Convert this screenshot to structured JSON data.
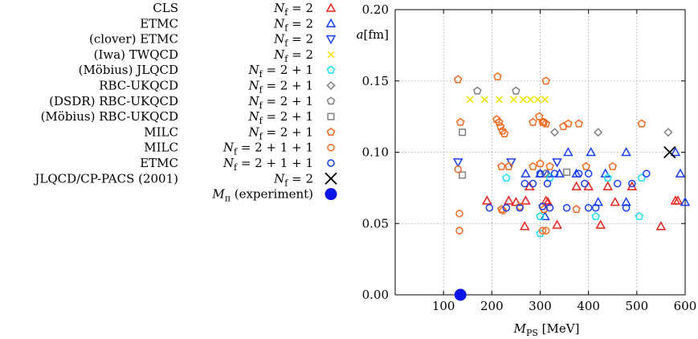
{
  "chart_data": {
    "type": "scatter",
    "xlabel": "M_PS [MeV]",
    "ylabel": "a[fm]",
    "xlim": [
      0,
      600
    ],
    "ylim": [
      0,
      0.2
    ],
    "xticks": [
      100,
      200,
      300,
      400,
      500,
      600
    ],
    "yticks": [
      0.0,
      0.05,
      0.1,
      0.15,
      0.2
    ],
    "xtick_labels": [
      "100",
      "200",
      "300",
      "400",
      "500",
      "600"
    ],
    "ytick_labels": [
      "0.00",
      "0.05",
      "0.10",
      "0.15",
      "0.20"
    ],
    "grid": true,
    "legend_position": "left of plot",
    "series": [
      {
        "name": "CLS",
        "nf": "N_f = 2",
        "marker": "triangle-up",
        "color": "#e8231f",
        "points": [
          [
            190,
            0.066
          ],
          [
            235,
            0.066
          ],
          [
            250,
            0.065
          ],
          [
            270,
            0.066
          ],
          [
            278,
            0.076
          ],
          [
            268,
            0.048
          ],
          [
            312,
            0.066
          ],
          [
            316,
            0.065
          ],
          [
            335,
            0.049
          ],
          [
            375,
            0.076
          ],
          [
            400,
            0.076
          ],
          [
            425,
            0.049
          ],
          [
            440,
            0.076
          ],
          [
            455,
            0.065
          ],
          [
            490,
            0.076
          ],
          [
            550,
            0.048
          ],
          [
            580,
            0.066
          ],
          [
            585,
            0.066
          ]
        ]
      },
      {
        "name": "ETMC",
        "nf": "N_f = 2",
        "marker": "triangle-up",
        "color": "#1a3ff0",
        "points": [
          [
            270,
            0.085
          ],
          [
            300,
            0.085
          ],
          [
            310,
            0.055
          ],
          [
            315,
            0.085
          ],
          [
            340,
            0.085
          ],
          [
            358,
            0.1
          ],
          [
            375,
            0.085
          ],
          [
            405,
            0.1
          ],
          [
            420,
            0.065
          ],
          [
            435,
            0.085
          ],
          [
            478,
            0.1
          ],
          [
            478,
            0.065
          ],
          [
            580,
            0.1
          ],
          [
            590,
            0.085
          ],
          [
            600,
            0.065
          ]
        ]
      },
      {
        "name": "(clover) ETMC",
        "nf": "N_f = 2",
        "marker": "triangle-down",
        "color": "#1a3ff0",
        "points": [
          [
            130,
            0.093
          ],
          [
            240,
            0.093
          ],
          [
            335,
            0.093
          ]
        ]
      },
      {
        "name": "(Iwa) TWQCD",
        "nf": "N_f = 2",
        "marker": "x",
        "color": "#f0e000",
        "points": [
          [
            155,
            0.137
          ],
          [
            185,
            0.137
          ],
          [
            215,
            0.137
          ],
          [
            245,
            0.137
          ],
          [
            265,
            0.137
          ],
          [
            280,
            0.137
          ],
          [
            295,
            0.137
          ],
          [
            310,
            0.137
          ]
        ]
      },
      {
        "name": "(Möbius) JLQCD",
        "nf": "N_f = 2 + 1",
        "marker": "pentagon",
        "color": "#1ee0f0",
        "points": [
          [
            230,
            0.082
          ],
          [
            300,
            0.055
          ],
          [
            300,
            0.043
          ],
          [
            320,
            0.082
          ],
          [
            415,
            0.055
          ],
          [
            440,
            0.082
          ],
          [
            505,
            0.055
          ],
          [
            510,
            0.082
          ]
        ]
      },
      {
        "name": "RBC-UKQCD",
        "nf": "N_f = 2 + 1",
        "marker": "diamond",
        "color": "#808080",
        "points": [
          [
            310,
            0.085
          ],
          [
            330,
            0.114
          ],
          [
            420,
            0.114
          ],
          [
            565,
            0.114
          ]
        ]
      },
      {
        "name": "(DSDR) RBC-UKQCD",
        "nf": "N_f = 2 + 1",
        "marker": "pentagon",
        "color": "#808080",
        "points": [
          [
            170,
            0.143
          ],
          [
            250,
            0.143
          ]
        ]
      },
      {
        "name": "(Möbius) RBC-UKQCD",
        "nf": "N_f = 2 + 1",
        "marker": "square",
        "color": "#808080",
        "points": [
          [
            139,
            0.114
          ],
          [
            139,
            0.084
          ],
          [
            355,
            0.086
          ]
        ]
      },
      {
        "name": "MILC",
        "nf": "N_f = 2 + 1",
        "marker": "pentagon",
        "color": "#f26a1f",
        "points": [
          [
            130,
            0.151
          ],
          [
            212,
            0.153
          ],
          [
            312,
            0.15
          ],
          [
            135,
            0.121
          ],
          [
            210,
            0.123
          ],
          [
            215,
            0.121
          ],
          [
            218,
            0.118
          ],
          [
            222,
            0.115
          ],
          [
            226,
            0.113
          ],
          [
            285,
            0.121
          ],
          [
            298,
            0.125
          ],
          [
            305,
            0.121
          ],
          [
            308,
            0.121
          ],
          [
            312,
            0.12
          ],
          [
            348,
            0.118
          ],
          [
            358,
            0.12
          ],
          [
            380,
            0.12
          ],
          [
            510,
            0.12
          ],
          [
            220,
            0.09
          ],
          [
            235,
            0.09
          ],
          [
            285,
            0.09
          ],
          [
            300,
            0.092
          ],
          [
            320,
            0.09
          ],
          [
            395,
            0.09
          ],
          [
            450,
            0.09
          ],
          [
            220,
            0.06
          ],
          [
            308,
            0.06
          ],
          [
            305,
            0.062
          ],
          [
            375,
            0.06
          ]
        ]
      },
      {
        "name": "MILC",
        "nf": "N_f = 2 + 1 + 1",
        "marker": "circle",
        "color": "#f26a1f",
        "points": [
          [
            130,
            0.088
          ],
          [
            133,
            0.057
          ],
          [
            133,
            0.045
          ],
          [
            223,
            0.059
          ],
          [
            305,
            0.045
          ],
          [
            312,
            0.045
          ],
          [
            258,
            0.062
          ]
        ]
      },
      {
        "name": "ETMC",
        "nf": "N_f = 2 + 1 + 1",
        "marker": "circle",
        "color": "#1a3ff0",
        "points": [
          [
            195,
            0.061
          ],
          [
            230,
            0.061
          ],
          [
            258,
            0.061
          ],
          [
            268,
            0.078
          ],
          [
            285,
            0.078
          ],
          [
            300,
            0.085
          ],
          [
            305,
            0.062
          ],
          [
            315,
            0.078
          ],
          [
            320,
            0.061
          ],
          [
            330,
            0.085
          ],
          [
            380,
            0.085
          ],
          [
            392,
            0.078
          ],
          [
            400,
            0.085
          ],
          [
            400,
            0.061
          ],
          [
            415,
            0.061
          ],
          [
            460,
            0.078
          ],
          [
            478,
            0.061
          ],
          [
            490,
            0.078
          ],
          [
            520,
            0.085
          ],
          [
            355,
            0.061
          ]
        ]
      },
      {
        "name": "JLQCD/CP-PACS (2001)",
        "nf": "N_f = 2",
        "marker": "bigx",
        "color": "#000000",
        "points": [
          [
            568,
            0.1
          ]
        ]
      },
      {
        "name": "",
        "nf": "M_π (experiment)",
        "marker": "filled-circle",
        "color": "#0a14e8",
        "points": [
          [
            135,
            0.0
          ]
        ]
      }
    ]
  }
}
